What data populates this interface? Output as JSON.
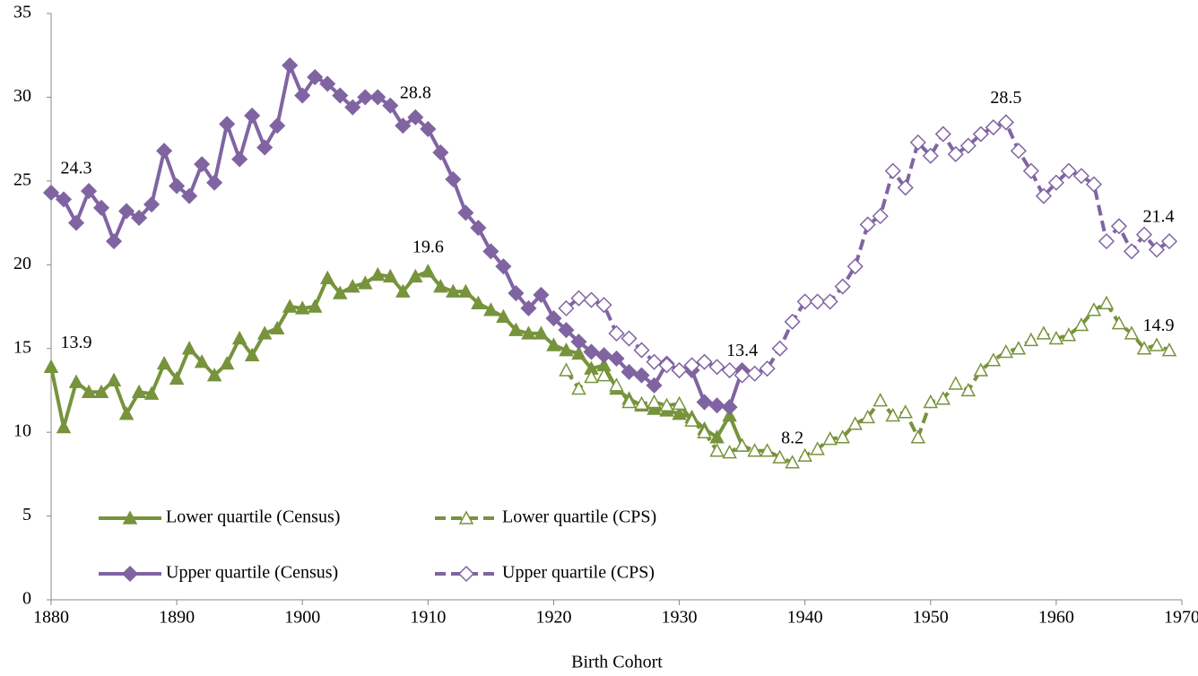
{
  "chart_data": {
    "type": "line",
    "xlabel": "Birth Cohort",
    "xlim": [
      1880,
      1970
    ],
    "xticks": [
      1880,
      1890,
      1900,
      1910,
      1920,
      1930,
      1940,
      1950,
      1960,
      1970
    ],
    "ylim": [
      0,
      35
    ],
    "yticks": [
      0,
      5,
      10,
      15,
      20,
      25,
      30,
      35
    ],
    "grid": false,
    "legend": "lower left",
    "series": [
      {
        "name": "Lower quartile (Census)",
        "color": "#77933c",
        "dashed": false,
        "marker": "triangle",
        "filled": true,
        "x": [
          1880,
          1881,
          1882,
          1883,
          1884,
          1885,
          1886,
          1887,
          1888,
          1889,
          1890,
          1891,
          1892,
          1893,
          1894,
          1895,
          1896,
          1897,
          1898,
          1899,
          1900,
          1901,
          1902,
          1903,
          1904,
          1905,
          1906,
          1907,
          1908,
          1909,
          1910,
          1911,
          1912,
          1913,
          1914,
          1915,
          1916,
          1917,
          1918,
          1919,
          1920,
          1921,
          1922,
          1923,
          1924,
          1925,
          1926,
          1927,
          1928,
          1929,
          1930,
          1931,
          1932,
          1933,
          1934,
          1935
        ],
        "values": [
          13.9,
          10.3,
          13.0,
          12.4,
          12.4,
          13.1,
          11.1,
          12.4,
          12.3,
          14.1,
          13.2,
          15.0,
          14.2,
          13.4,
          14.1,
          15.6,
          14.6,
          15.9,
          16.2,
          17.5,
          17.4,
          17.5,
          19.2,
          18.3,
          18.7,
          18.9,
          19.4,
          19.3,
          18.4,
          19.3,
          19.6,
          18.7,
          18.4,
          18.4,
          17.7,
          17.3,
          16.9,
          16.1,
          15.9,
          15.9,
          15.2,
          14.9,
          14.7,
          13.8,
          14.0,
          12.6,
          12.0,
          11.6,
          11.4,
          11.3,
          11.1,
          10.9,
          10.2,
          9.7,
          11.0,
          9.2
        ],
        "value_labels": [
          "13.9",
          null,
          null,
          null,
          null,
          null,
          null,
          null,
          null,
          null,
          null,
          null,
          null,
          null,
          null,
          null,
          null,
          null,
          null,
          null,
          null,
          null,
          null,
          null,
          null,
          null,
          null,
          null,
          null,
          null,
          "19.6",
          null,
          null,
          null,
          null,
          null,
          null,
          null,
          null,
          null,
          null,
          null,
          null,
          null,
          null,
          null,
          null,
          null,
          null,
          null,
          null,
          null,
          null,
          null,
          null,
          null
        ]
      },
      {
        "name": "Lower quartile (CPS)",
        "color": "#77933c",
        "dashed": true,
        "marker": "triangle",
        "filled": false,
        "x": [
          1921,
          1922,
          1923,
          1924,
          1925,
          1926,
          1927,
          1928,
          1929,
          1930,
          1931,
          1932,
          1933,
          1934,
          1935,
          1936,
          1937,
          1938,
          1939,
          1940,
          1941,
          1942,
          1943,
          1944,
          1945,
          1946,
          1947,
          1948,
          1949,
          1950,
          1951,
          1952,
          1953,
          1954,
          1955,
          1956,
          1957,
          1958,
          1959,
          1960,
          1961,
          1962,
          1963,
          1964,
          1965,
          1966,
          1967,
          1968,
          1969
        ],
        "values": [
          13.7,
          12.6,
          13.3,
          13.4,
          12.8,
          11.8,
          11.7,
          11.8,
          11.6,
          11.7,
          10.7,
          10.0,
          8.9,
          8.8,
          9.2,
          8.9,
          8.9,
          8.5,
          8.2,
          8.6,
          9.0,
          9.6,
          9.7,
          10.5,
          10.9,
          11.9,
          11.0,
          11.2,
          9.7,
          11.8,
          12.0,
          12.9,
          12.5,
          13.7,
          14.3,
          14.8,
          15.0,
          15.5,
          15.9,
          15.6,
          15.8,
          16.4,
          17.3,
          17.7,
          16.5,
          15.9,
          15.0,
          15.2,
          14.9
        ],
        "value_labels": [
          null,
          null,
          null,
          null,
          null,
          null,
          null,
          null,
          null,
          null,
          null,
          null,
          null,
          null,
          null,
          null,
          null,
          null,
          "8.2",
          null,
          null,
          null,
          null,
          null,
          null,
          null,
          null,
          null,
          null,
          null,
          null,
          null,
          null,
          null,
          null,
          null,
          null,
          null,
          null,
          null,
          null,
          null,
          null,
          null,
          null,
          null,
          null,
          null,
          "14.9"
        ]
      },
      {
        "name": "Upper quartile (Census)",
        "color": "#8064a2",
        "dashed": false,
        "marker": "diamond",
        "filled": true,
        "x": [
          1880,
          1881,
          1882,
          1883,
          1884,
          1885,
          1886,
          1887,
          1888,
          1889,
          1890,
          1891,
          1892,
          1893,
          1894,
          1895,
          1896,
          1897,
          1898,
          1899,
          1900,
          1901,
          1902,
          1903,
          1904,
          1905,
          1906,
          1907,
          1908,
          1909,
          1910,
          1911,
          1912,
          1913,
          1914,
          1915,
          1916,
          1917,
          1918,
          1919,
          1920,
          1921,
          1922,
          1923,
          1924,
          1925,
          1926,
          1927,
          1928,
          1929,
          1930,
          1931,
          1932,
          1933,
          1934,
          1935
        ],
        "values": [
          24.3,
          23.9,
          22.5,
          24.4,
          23.4,
          21.4,
          23.2,
          22.8,
          23.6,
          26.8,
          24.7,
          24.1,
          26.0,
          24.9,
          28.4,
          26.3,
          28.9,
          27.0,
          28.3,
          31.9,
          30.1,
          31.2,
          30.8,
          30.1,
          29.4,
          30.0,
          30.0,
          29.5,
          28.3,
          28.8,
          28.1,
          26.7,
          25.1,
          23.1,
          22.2,
          20.8,
          19.9,
          18.3,
          17.4,
          18.2,
          16.8,
          16.1,
          15.4,
          14.8,
          14.6,
          14.4,
          13.6,
          13.4,
          12.8,
          14.1,
          13.7,
          13.7,
          11.8,
          11.6,
          11.5,
          13.7
        ],
        "value_labels": [
          "24.3",
          null,
          null,
          null,
          null,
          null,
          null,
          null,
          null,
          null,
          null,
          null,
          null,
          null,
          null,
          null,
          null,
          null,
          null,
          null,
          null,
          null,
          null,
          null,
          null,
          null,
          null,
          null,
          null,
          "28.8",
          null,
          null,
          null,
          null,
          null,
          null,
          null,
          null,
          null,
          null,
          null,
          null,
          null,
          null,
          null,
          null,
          null,
          null,
          null,
          null,
          null,
          null,
          null,
          null,
          null,
          null
        ]
      },
      {
        "name": "Upper quartile (CPS)",
        "color": "#8064a2",
        "dashed": true,
        "marker": "diamond",
        "filled": false,
        "x": [
          1921,
          1922,
          1923,
          1924,
          1925,
          1926,
          1927,
          1928,
          1929,
          1930,
          1931,
          1932,
          1933,
          1934,
          1935,
          1936,
          1937,
          1938,
          1939,
          1940,
          1941,
          1942,
          1943,
          1944,
          1945,
          1946,
          1947,
          1948,
          1949,
          1950,
          1951,
          1952,
          1953,
          1954,
          1955,
          1956,
          1957,
          1958,
          1959,
          1960,
          1961,
          1962,
          1963,
          1964,
          1965,
          1966,
          1967,
          1968,
          1969
        ],
        "values": [
          17.4,
          18.0,
          17.9,
          17.6,
          15.9,
          15.6,
          14.9,
          14.2,
          14.0,
          13.7,
          14.0,
          14.2,
          13.9,
          13.7,
          13.4,
          13.5,
          13.8,
          15.0,
          16.6,
          17.8,
          17.8,
          17.8,
          18.7,
          19.9,
          22.4,
          22.9,
          25.6,
          24.6,
          27.3,
          26.5,
          27.8,
          26.6,
          27.1,
          27.8,
          28.2,
          28.5,
          26.8,
          25.6,
          24.1,
          24.9,
          25.6,
          25.3,
          24.8,
          21.4,
          22.3,
          20.8,
          21.8,
          20.9,
          21.4
        ],
        "value_labels": [
          null,
          null,
          null,
          null,
          null,
          null,
          null,
          null,
          null,
          null,
          null,
          null,
          null,
          null,
          "13.4",
          null,
          null,
          null,
          null,
          null,
          null,
          null,
          null,
          null,
          null,
          null,
          null,
          null,
          null,
          null,
          null,
          null,
          null,
          null,
          null,
          "28.5",
          null,
          null,
          null,
          null,
          null,
          null,
          null,
          null,
          null,
          null,
          null,
          null,
          "21.4"
        ]
      }
    ]
  }
}
